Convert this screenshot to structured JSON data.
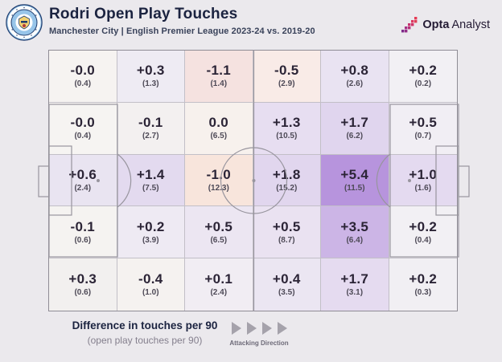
{
  "header": {
    "title": "Rodri Open Play Touches",
    "subtitle": "Manchester City | English Premier League 2023-24 vs. 2019-20",
    "badge": "manchester-city-crest",
    "brand_bold": "Opta",
    "brand_regular": "Analyst"
  },
  "legend": {
    "title": "Difference in touches per 90",
    "subtitle": "(open play touches per 90)",
    "direction_label": "Attacking Direction",
    "arrow_count": 4
  },
  "colors": {
    "background": "#ebe9ed",
    "pitch_line": "#98959e",
    "cell_border": "#c2bfc7",
    "outer_border": "#8f8c95",
    "value_text": "#2b2436",
    "sub_text": "#4e4a57",
    "title_text": "#1b2340",
    "max_positive_cell": "#b794dd",
    "negative_cell": "#f5e2e0"
  },
  "chart_data": {
    "type": "heatmap",
    "title": "Rodri Open Play Touches",
    "subtitle": "Manchester City | English Premier League 2023-24 vs. 2019-20",
    "rows": 5,
    "cols": 6,
    "value_label": "Difference in touches per 90",
    "sub_value_label": "open play touches per 90",
    "attacking_direction": "left-to-right",
    "values": [
      [
        -0.0,
        0.3,
        -1.1,
        -0.5,
        0.8,
        0.2
      ],
      [
        -0.0,
        -0.1,
        0.0,
        1.3,
        1.7,
        0.5
      ],
      [
        0.6,
        1.4,
        -1.0,
        1.8,
        5.4,
        1.0
      ],
      [
        -0.1,
        0.2,
        0.5,
        0.5,
        3.5,
        0.2
      ],
      [
        0.3,
        -0.4,
        0.1,
        0.4,
        1.7,
        0.2
      ]
    ],
    "touches_per_90": [
      [
        0.4,
        1.3,
        1.4,
        2.9,
        2.6,
        0.2
      ],
      [
        0.4,
        2.7,
        6.5,
        10.5,
        6.2,
        0.7
      ],
      [
        2.4,
        7.5,
        12.3,
        15.2,
        11.5,
        1.6
      ],
      [
        0.6,
        3.9,
        6.5,
        8.7,
        6.4,
        0.4
      ],
      [
        0.6,
        1.0,
        2.4,
        3.5,
        3.1,
        0.3
      ]
    ],
    "cells": [
      {
        "v": "-0.0",
        "s": "(0.4)",
        "bg": "#f6f3f1"
      },
      {
        "v": "+0.3",
        "s": "(1.3)",
        "bg": "#eeebf3"
      },
      {
        "v": "-1.1",
        "s": "(1.4)",
        "bg": "#f5e2e0"
      },
      {
        "v": "-0.5",
        "s": "(2.9)",
        "bg": "#f9ebe7"
      },
      {
        "v": "+0.8",
        "s": "(2.6)",
        "bg": "#e9e3f2"
      },
      {
        "v": "+0.2",
        "s": "(0.2)",
        "bg": "#f2f0f4"
      },
      {
        "v": "-0.0",
        "s": "(0.4)",
        "bg": "#f6f4f2"
      },
      {
        "v": "-0.1",
        "s": "(2.7)",
        "bg": "#f3f0f0"
      },
      {
        "v": "0.0",
        "s": "(6.5)",
        "bg": "#f7f1ed"
      },
      {
        "v": "+1.3",
        "s": "(10.5)",
        "bg": "#e7def1"
      },
      {
        "v": "+1.7",
        "s": "(6.2)",
        "bg": "#e0d5ee"
      },
      {
        "v": "+0.5",
        "s": "(0.7)",
        "bg": "#f1eef4"
      },
      {
        "v": "+0.6",
        "s": "(2.4)",
        "bg": "#e9e4f1"
      },
      {
        "v": "+1.4",
        "s": "(7.5)",
        "bg": "#e3daef"
      },
      {
        "v": "-1.0",
        "s": "(12.3)",
        "bg": "#f8e5dc"
      },
      {
        "v": "+1.8",
        "s": "(15.2)",
        "bg": "#e1d6ee"
      },
      {
        "v": "+5.4",
        "s": "(11.5)",
        "bg": "#b794dd"
      },
      {
        "v": "+1.0",
        "s": "(1.6)",
        "bg": "#e4daf0"
      },
      {
        "v": "-0.1",
        "s": "(0.6)",
        "bg": "#f5f3f1"
      },
      {
        "v": "+0.2",
        "s": "(3.9)",
        "bg": "#eeeaf3"
      },
      {
        "v": "+0.5",
        "s": "(6.5)",
        "bg": "#ece6f2"
      },
      {
        "v": "+0.5",
        "s": "(8.7)",
        "bg": "#eae2f1"
      },
      {
        "v": "+3.5",
        "s": "(6.4)",
        "bg": "#ccb5e6"
      },
      {
        "v": "+0.2",
        "s": "(0.4)",
        "bg": "#f2f0f4"
      },
      {
        "v": "+0.3",
        "s": "(0.6)",
        "bg": "#f2f0ef"
      },
      {
        "v": "-0.4",
        "s": "(1.0)",
        "bg": "#f5f2f0"
      },
      {
        "v": "+0.1",
        "s": "(2.4)",
        "bg": "#f1edf3"
      },
      {
        "v": "+0.4",
        "s": "(3.5)",
        "bg": "#ebe6f2"
      },
      {
        "v": "+1.7",
        "s": "(3.1)",
        "bg": "#e5dbf0"
      },
      {
        "v": "+0.2",
        "s": "(0.3)",
        "bg": "#f1eff3"
      }
    ]
  }
}
